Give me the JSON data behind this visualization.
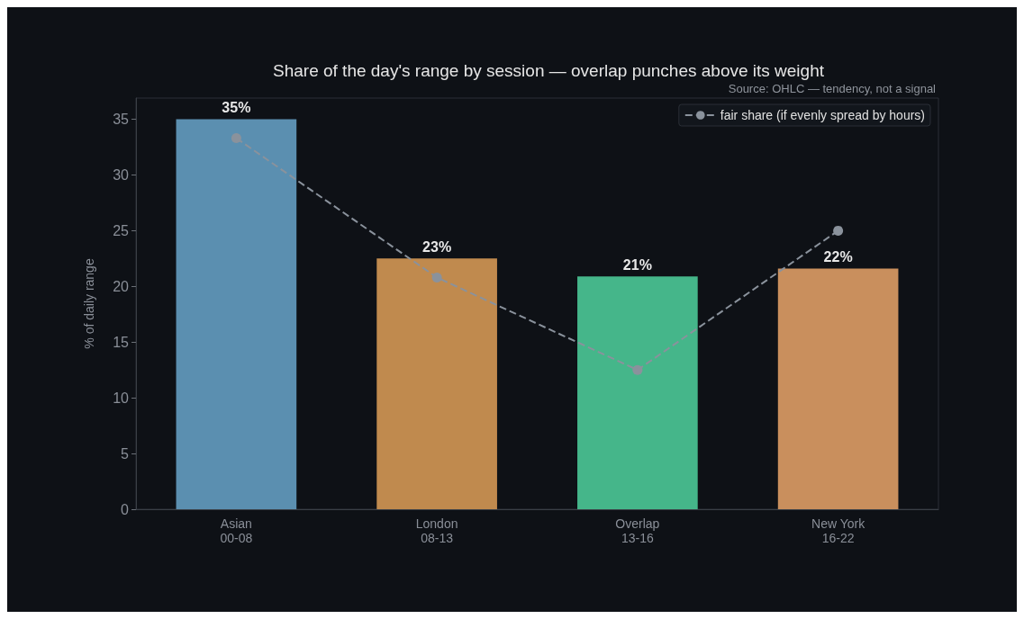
{
  "chart_data": {
    "type": "bar",
    "title": "Share of the day's range by session — overlap punches above its weight",
    "annotations": [
      "Source: OHLC — tendency, not a signal"
    ],
    "ylabel": "% of daily range",
    "categories": [
      "Asian\n00-08",
      "London\n08-13",
      "Overlap\n13-16",
      "New York\n16-22"
    ],
    "series": [
      {
        "colors": [
          "#5b8fb0",
          "#c08a4e",
          "#45b68a",
          "#c98f5d"
        ],
        "values": [
          35.0,
          22.5,
          20.9,
          21.6
        ],
        "value_labels": [
          "35%",
          "23%",
          "21%",
          "22%"
        ]
      },
      {
        "type": "line",
        "name": "fair share (if evenly spread by hours)",
        "color": "#8a929c",
        "values": [
          33.3,
          20.8,
          12.5,
          25.0
        ],
        "marker": "circle",
        "line_style": "dashed"
      }
    ],
    "ylim": [
      0,
      36.9
    ],
    "yticks": [
      0,
      5,
      10,
      15,
      20,
      25,
      30,
      35
    ],
    "grid": false,
    "legend": "top right"
  }
}
